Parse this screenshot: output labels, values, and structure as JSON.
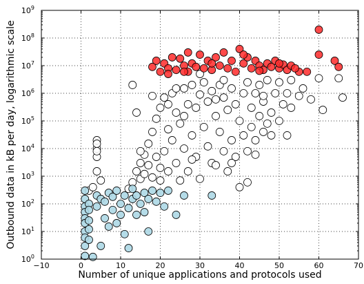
{
  "chart_data": {
    "type": "scatter",
    "xlabel": "Number of unique applications and protocols used",
    "ylabel": "Outbound data in kB per day, logarithmic scale",
    "xlim": [
      -10,
      70
    ],
    "ylim": [
      1,
      1000000000
    ],
    "yscale": "log",
    "grid": true,
    "x_ticks": [
      -10,
      0,
      10,
      20,
      30,
      40,
      50,
      60,
      70
    ],
    "y_ticks": [
      {
        "value": 1,
        "base": "10",
        "exp": "0"
      },
      {
        "value": 10,
        "base": "10",
        "exp": "1"
      },
      {
        "value": 100,
        "base": "10",
        "exp": "2"
      },
      {
        "value": 1000,
        "base": "10",
        "exp": "3"
      },
      {
        "value": 10000,
        "base": "10",
        "exp": "4"
      },
      {
        "value": 100000,
        "base": "10",
        "exp": "5"
      },
      {
        "value": 1000000,
        "base": "10",
        "exp": "6"
      },
      {
        "value": 10000000,
        "base": "10",
        "exp": "7"
      },
      {
        "value": 100000000,
        "base": "10",
        "exp": "8"
      },
      {
        "value": 1000000000,
        "base": "10",
        "exp": "9"
      }
    ],
    "series": [
      {
        "color": "#ffffff",
        "points": [
          [
            12,
            350
          ],
          [
            13,
            600
          ],
          [
            14,
            1500
          ],
          [
            15,
            800
          ],
          [
            15,
            3000
          ],
          [
            16,
            1200
          ],
          [
            16,
            6000
          ],
          [
            17,
            2500
          ],
          [
            17,
            15000
          ],
          [
            18,
            900
          ],
          [
            18,
            40000
          ],
          [
            19,
            5000
          ],
          [
            19,
            120000
          ],
          [
            20,
            2000
          ],
          [
            20,
            300000
          ],
          [
            21,
            8000
          ],
          [
            21,
            700000
          ],
          [
            22,
            1500
          ],
          [
            22,
            50000
          ],
          [
            23,
            20000
          ],
          [
            23,
            1000000
          ],
          [
            24,
            3000
          ],
          [
            24,
            200000
          ],
          [
            25,
            700
          ],
          [
            25,
            80000
          ],
          [
            26,
            10000
          ],
          [
            26,
            1500000
          ],
          [
            27,
            400000
          ],
          [
            27,
            1500
          ],
          [
            28,
            30000
          ],
          [
            28,
            2000000
          ],
          [
            29,
            5000
          ],
          [
            29,
            300000
          ],
          [
            30,
            900000
          ],
          [
            30,
            800
          ],
          [
            31,
            60000
          ],
          [
            31,
            2500000
          ],
          [
            32,
            12000
          ],
          [
            32,
            500000
          ],
          [
            33,
            3000
          ],
          [
            33,
            1200000
          ],
          [
            34,
            150000
          ],
          [
            34,
            2500
          ],
          [
            35,
            40000
          ],
          [
            35,
            2000000
          ],
          [
            36,
            8000
          ],
          [
            36,
            700000
          ],
          [
            37,
            250000
          ],
          [
            37,
            1500
          ],
          [
            38,
            20000
          ],
          [
            38,
            1500000
          ],
          [
            39,
            5000
          ],
          [
            39,
            400000
          ],
          [
            40,
            100000
          ],
          [
            40,
            400
          ],
          [
            41,
            1000000
          ],
          [
            41,
            30000
          ],
          [
            42,
            2500000
          ],
          [
            42,
            8000
          ],
          [
            43,
            300000
          ],
          [
            43,
            60000
          ],
          [
            44,
            1000000
          ],
          [
            44,
            20000
          ],
          [
            45,
            150000
          ],
          [
            45,
            2000000
          ],
          [
            46,
            40000
          ],
          [
            46,
            500000
          ],
          [
            47,
            80000
          ],
          [
            47,
            3000000
          ],
          [
            48,
            200000
          ],
          [
            48,
            30000
          ],
          [
            49,
            1000000
          ],
          [
            50,
            100000
          ],
          [
            50,
            2500000
          ],
          [
            51,
            400000
          ],
          [
            52,
            1000000
          ],
          [
            53,
            300000
          ],
          [
            53,
            3000000
          ],
          [
            55,
            800000
          ],
          [
            56,
            1500000
          ],
          [
            58,
            600000
          ],
          [
            60,
            3500000
          ],
          [
            61,
            250000
          ],
          [
            65,
            3500000
          ],
          [
            66,
            700000
          ],
          [
            13,
            2000000
          ],
          [
            15,
            8000
          ],
          [
            20,
            700
          ],
          [
            24,
            1500000
          ],
          [
            28,
            4000
          ],
          [
            34,
            600000
          ],
          [
            38,
            3000
          ],
          [
            44,
            6000
          ],
          [
            52,
            30000
          ],
          [
            4,
            10000
          ],
          [
            4,
            5000
          ],
          [
            4,
            20000
          ],
          [
            4,
            15000
          ],
          [
            4,
            8000
          ],
          [
            4,
            1500
          ],
          [
            5,
            700
          ],
          [
            2,
            300
          ],
          [
            3,
            400
          ],
          [
            14,
            200000
          ],
          [
            18,
            800000
          ],
          [
            22,
            400000
          ],
          [
            26,
            150000
          ],
          [
            30,
            5000000
          ],
          [
            36,
            3000000
          ],
          [
            42,
            600
          ],
          [
            46,
            800000
          ]
        ]
      },
      {
        "color": "#add8e6",
        "points": [
          [
            1,
            300
          ],
          [
            1,
            150
          ],
          [
            1,
            80
          ],
          [
            1,
            50
          ],
          [
            1,
            30
          ],
          [
            1,
            20
          ],
          [
            1,
            10
          ],
          [
            1,
            6
          ],
          [
            1,
            3
          ],
          [
            1,
            1.3
          ],
          [
            2,
            100
          ],
          [
            2,
            60
          ],
          [
            2,
            25
          ],
          [
            2,
            12
          ],
          [
            2,
            5
          ],
          [
            3,
            1.2
          ],
          [
            4,
            200
          ],
          [
            4,
            80
          ],
          [
            5,
            150
          ],
          [
            5,
            3
          ],
          [
            6,
            30
          ],
          [
            6,
            120
          ],
          [
            7,
            250
          ],
          [
            7,
            15
          ],
          [
            8,
            180
          ],
          [
            8,
            60
          ],
          [
            9,
            300
          ],
          [
            9,
            20
          ],
          [
            10,
            100
          ],
          [
            10,
            40
          ],
          [
            11,
            200
          ],
          [
            11,
            8
          ],
          [
            12,
            2.5
          ],
          [
            12,
            70
          ],
          [
            13,
            150
          ],
          [
            13,
            350
          ],
          [
            14,
            40
          ],
          [
            14,
            200
          ],
          [
            15,
            100
          ],
          [
            16,
            250
          ],
          [
            16,
            50
          ],
          [
            17,
            150
          ],
          [
            18,
            300
          ],
          [
            19,
            120
          ],
          [
            20,
            250
          ],
          [
            21,
            80
          ],
          [
            22,
            300
          ],
          [
            24,
            40
          ],
          [
            26,
            200
          ],
          [
            33,
            200
          ],
          [
            17,
            10
          ]
        ]
      },
      {
        "color": "#ff2a2a",
        "points": [
          [
            18,
            9000000
          ],
          [
            19,
            15000000
          ],
          [
            20,
            6000000
          ],
          [
            21,
            12000000
          ],
          [
            22,
            8000000
          ],
          [
            23,
            20000000
          ],
          [
            24,
            7000000
          ],
          [
            25,
            18000000
          ],
          [
            26,
            10000000
          ],
          [
            27,
            30000000
          ],
          [
            27,
            6000000
          ],
          [
            28,
            12000000
          ],
          [
            29,
            9000000
          ],
          [
            30,
            25000000
          ],
          [
            31,
            8000000
          ],
          [
            32,
            15000000
          ],
          [
            33,
            7000000
          ],
          [
            34,
            20000000
          ],
          [
            35,
            10000000
          ],
          [
            36,
            30000000
          ],
          [
            37,
            8000000
          ],
          [
            38,
            15000000
          ],
          [
            39,
            6000000
          ],
          [
            40,
            40000000
          ],
          [
            41,
            12000000
          ],
          [
            42,
            20000000
          ],
          [
            43,
            8000000
          ],
          [
            44,
            15000000
          ],
          [
            45,
            10000000
          ],
          [
            46,
            7000000
          ],
          [
            47,
            12000000
          ],
          [
            48,
            9000000
          ],
          [
            49,
            15000000
          ],
          [
            50,
            8000000
          ],
          [
            51,
            11000000
          ],
          [
            52,
            7000000
          ],
          [
            53,
            10000000
          ],
          [
            55,
            6000000
          ],
          [
            57,
            6000000
          ],
          [
            60,
            200000000
          ],
          [
            60,
            25000000
          ],
          [
            64,
            15000000
          ],
          [
            65,
            9000000
          ],
          [
            22,
            5000000
          ],
          [
            26,
            6000000
          ],
          [
            33,
            12000000
          ],
          [
            41,
            25000000
          ],
          [
            45,
            6500000
          ],
          [
            50,
            12000000
          ],
          [
            54,
            8000000
          ]
        ]
      }
    ]
  }
}
